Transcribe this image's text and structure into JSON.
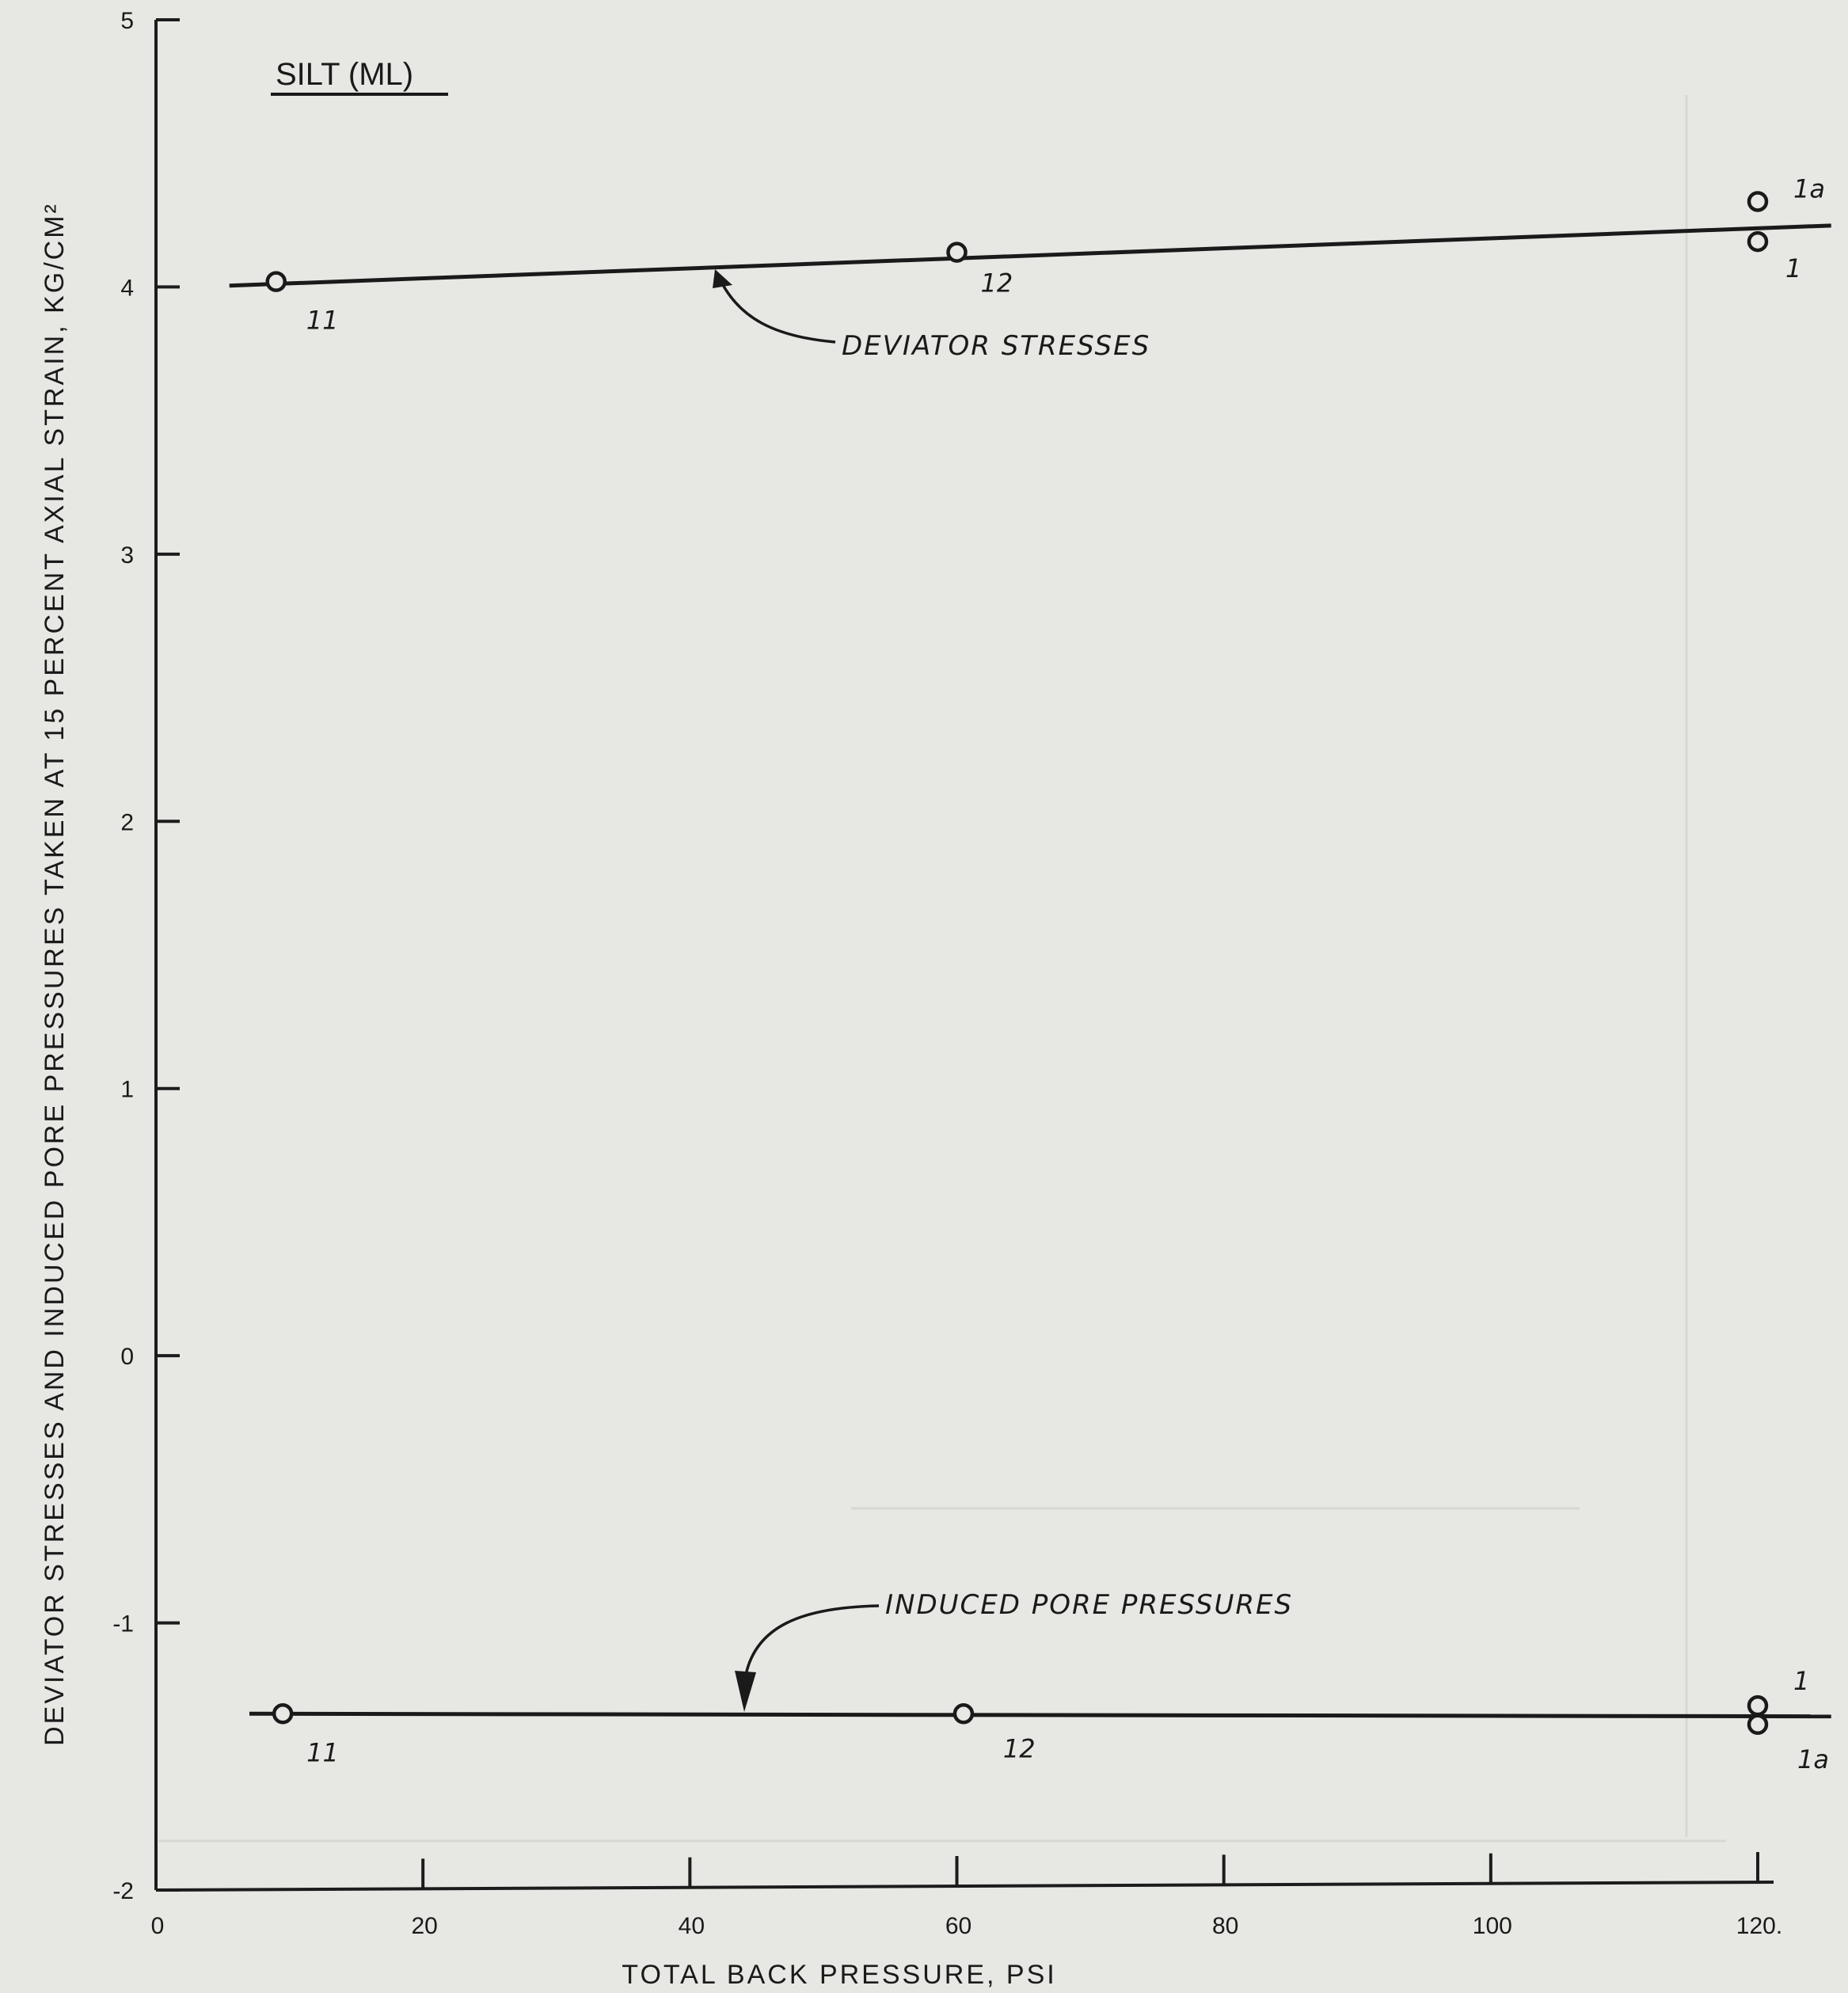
{
  "chart_data": {
    "type": "line",
    "title": "SILT (ML)",
    "xlabel": "TOTAL BACK PRESSURE, PSI",
    "ylabel": "DEVIATOR STRESSES AND INDUCED PORE PRESSURES TAKEN AT 15 PERCENT AXIAL STRAIN, KG/CM²",
    "xlim": [
      0,
      120
    ],
    "ylim": [
      -2,
      5
    ],
    "x_ticks": [
      0,
      20,
      40,
      60,
      80,
      100,
      120
    ],
    "x_tick_labels": [
      "0",
      "20",
      "40",
      "60",
      "80",
      "100",
      "120."
    ],
    "y_ticks": [
      -2,
      -1,
      0,
      1,
      2,
      3,
      4,
      5
    ],
    "y_tick_labels": [
      "-2",
      "-1",
      "0",
      "1",
      "2",
      "3",
      "4",
      "5"
    ],
    "grid": false,
    "series": [
      {
        "name": "DEVIATOR STRESSES",
        "line": [
          [
            5.5,
            4.005
          ],
          [
            125.5,
            4.23
          ]
        ],
        "points": [
          {
            "x": 9,
            "y": 4.02,
            "label": "11"
          },
          {
            "x": 60,
            "y": 4.13,
            "label": "12"
          },
          {
            "x": 120,
            "y": 4.32,
            "label": "1a"
          },
          {
            "x": 120,
            "y": 4.17,
            "label": "1"
          }
        ]
      },
      {
        "name": "INDUCED PORE PRESSURES",
        "line": [
          [
            7,
            -1.34
          ],
          [
            125.5,
            -1.35
          ]
        ],
        "points": [
          {
            "x": 9.5,
            "y": -1.34,
            "label": "11"
          },
          {
            "x": 60.5,
            "y": -1.34,
            "label": "12"
          },
          {
            "x": 120,
            "y": -1.31,
            "label": "1"
          },
          {
            "x": 120,
            "y": -1.38,
            "label": "1a"
          }
        ]
      }
    ],
    "annotations": [
      "DEVIATOR STRESSES",
      "INDUCED PORE PRESSURES"
    ]
  }
}
